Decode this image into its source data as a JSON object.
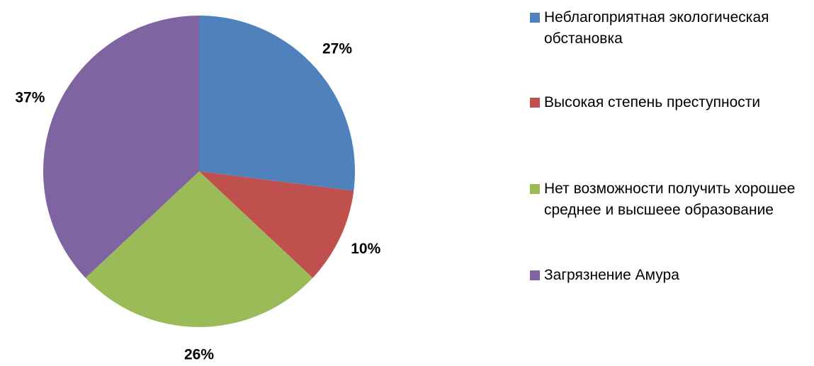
{
  "chart_data": {
    "type": "pie",
    "categories": [
      "Неблагоприятная экологическая обстановка",
      "Высокая степень преступности",
      "Нет возможности получить хорошее среднее и высшеее образование",
      "Загрязнение Амура"
    ],
    "values": [
      27,
      10,
      26,
      37
    ],
    "value_labels": [
      "27%",
      "10%",
      "26%",
      "37%"
    ],
    "colors": [
      "#4f81bd",
      "#c0504d",
      "#9bbb59",
      "#8064a2"
    ],
    "legend": "right"
  }
}
